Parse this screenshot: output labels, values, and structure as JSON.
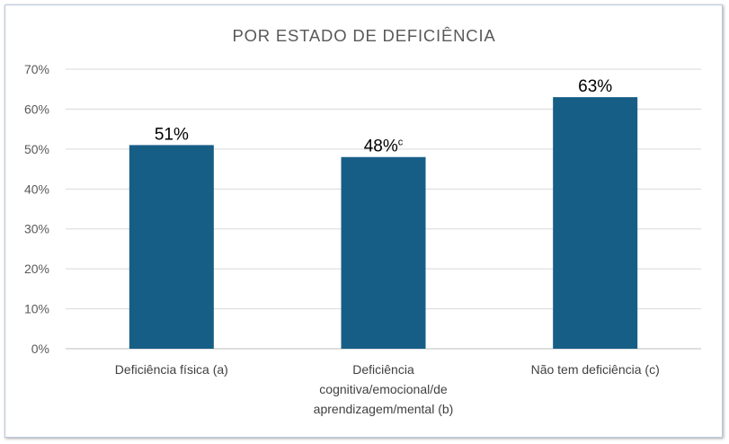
{
  "chart_data": {
    "type": "bar",
    "title": "POR ESTADO DE DEFICIÊNCIA",
    "categories": [
      [
        "Deficiência física (a)"
      ],
      [
        "Deficiência",
        "cognitiva/emocional/de",
        "aprendizagem/mental (b)"
      ],
      [
        "Não tem deficiência (c)"
      ]
    ],
    "values": [
      51,
      48,
      63
    ],
    "data_labels": [
      "51%",
      "48%",
      "63%"
    ],
    "data_label_superscripts": [
      "",
      "c",
      ""
    ],
    "yticks": [
      "0%",
      "10%",
      "20%",
      "30%",
      "40%",
      "50%",
      "60%",
      "70%"
    ],
    "ylim": [
      0,
      70
    ],
    "grid": true,
    "bar_color": "#175e86",
    "xlabel": "",
    "ylabel": ""
  }
}
